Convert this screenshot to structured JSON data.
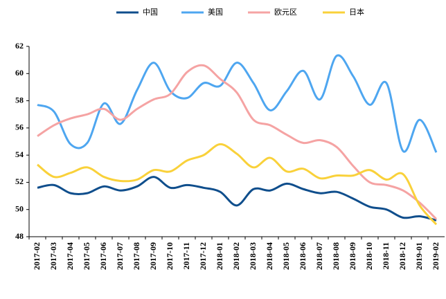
{
  "chart_data": {
    "type": "line",
    "categories": [
      "2017-02",
      "2017-03",
      "2017-04",
      "2017-05",
      "2017-06",
      "2017-07",
      "2017-08",
      "2017-09",
      "2017-10",
      "2017-11",
      "2017-12",
      "2018-01",
      "2018-02",
      "2018-03",
      "2018-04",
      "2018-05",
      "2018-06",
      "2018-07",
      "2018-08",
      "2018-09",
      "2018-10",
      "2018-11",
      "2018-12",
      "2019-01",
      "2019-02"
    ],
    "series": [
      {
        "name": "中国",
        "color": "#0f4e8c",
        "values": [
          51.6,
          51.8,
          51.2,
          51.2,
          51.7,
          51.4,
          51.7,
          52.4,
          51.6,
          51.8,
          51.6,
          51.3,
          50.3,
          51.5,
          51.4,
          51.9,
          51.5,
          51.2,
          51.3,
          50.8,
          50.2,
          50.0,
          49.4,
          49.5,
          49.2
        ]
      },
      {
        "name": "美国",
        "color": "#4ea6f0",
        "values": [
          57.7,
          57.2,
          54.8,
          54.9,
          57.8,
          56.3,
          58.8,
          60.8,
          58.7,
          58.2,
          59.3,
          59.1,
          60.8,
          59.3,
          57.3,
          58.7,
          60.2,
          58.1,
          61.3,
          59.8,
          57.7,
          59.3,
          54.3,
          56.6,
          54.2
        ]
      },
      {
        "name": "欧元区",
        "color": "#f5a3a3",
        "values": [
          55.4,
          56.2,
          56.7,
          57.0,
          57.4,
          56.6,
          57.4,
          58.1,
          58.5,
          60.1,
          60.6,
          59.6,
          58.6,
          56.6,
          56.2,
          55.5,
          54.9,
          55.1,
          54.6,
          53.2,
          52.0,
          51.8,
          51.4,
          50.5,
          49.3
        ]
      },
      {
        "name": "日本",
        "color": "#f9d13a",
        "values": [
          53.3,
          52.4,
          52.7,
          53.1,
          52.4,
          52.1,
          52.2,
          52.9,
          52.8,
          53.6,
          54.0,
          54.8,
          54.1,
          53.1,
          53.8,
          52.8,
          53.0,
          52.3,
          52.5,
          52.5,
          52.9,
          52.2,
          52.6,
          50.3,
          48.9
        ]
      }
    ],
    "ylim": [
      48,
      62
    ],
    "yticks": [
      48,
      50,
      52,
      54,
      56,
      58,
      60,
      62
    ],
    "legend": "top"
  }
}
